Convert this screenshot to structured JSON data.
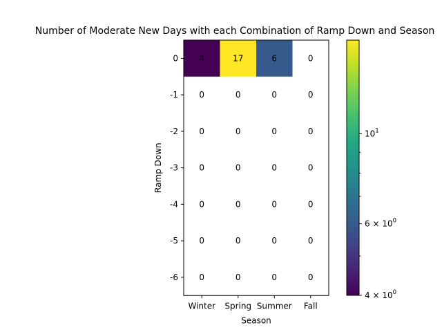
{
  "chart_data": {
    "type": "heatmap",
    "title": "Number of Moderate New Days with each Combination of Ramp Down and Season",
    "xlabel": "Season",
    "ylabel": "Ramp Down",
    "x_categories": [
      "Winter",
      "Spring",
      "Summer",
      "Fall"
    ],
    "y_categories": [
      "0",
      "-1",
      "-2",
      "-3",
      "-4",
      "-5",
      "-6"
    ],
    "values": [
      [
        4,
        17,
        6,
        0
      ],
      [
        0,
        0,
        0,
        0
      ],
      [
        0,
        0,
        0,
        0
      ],
      [
        0,
        0,
        0,
        0
      ],
      [
        0,
        0,
        0,
        0
      ],
      [
        0,
        0,
        0,
        0
      ],
      [
        0,
        0,
        0,
        0
      ]
    ],
    "color_scale": "log",
    "colormap": "viridis",
    "zero_color": "#ffffff",
    "vmin": 4,
    "vmax": 17,
    "colorbar_ticks": [
      {
        "value": 4,
        "label_base": "4",
        "label_exp": "0",
        "label_style": "sci"
      },
      {
        "value": 6,
        "label_base": "6",
        "label_exp": "0",
        "label_style": "sci"
      },
      {
        "value": 10,
        "label_base": "10",
        "label_exp": "1",
        "label_style": "pow"
      }
    ],
    "colorbar_minor_ticks": [
      5,
      7,
      8,
      9
    ]
  }
}
